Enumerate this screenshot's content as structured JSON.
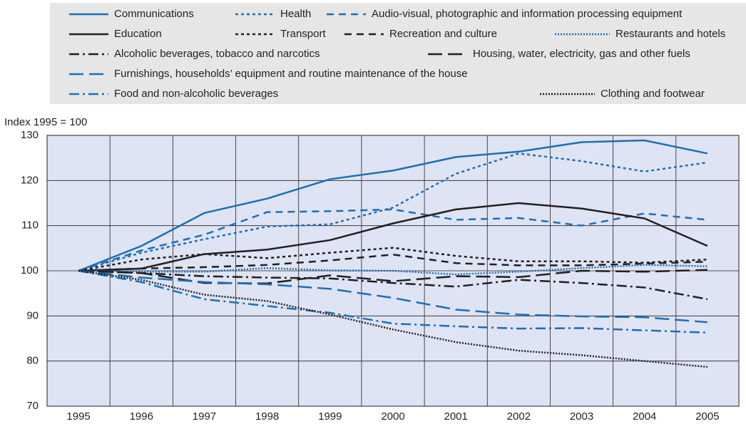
{
  "chart_data": {
    "type": "line",
    "y_label": "Index 1995 = 100",
    "x": [
      1995,
      1996,
      1997,
      1998,
      1999,
      2000,
      2001,
      2002,
      2003,
      2004,
      2005
    ],
    "ylim": [
      70,
      130
    ],
    "yticks": [
      70,
      80,
      90,
      100,
      110,
      120,
      130
    ],
    "grid": true,
    "series": [
      {
        "name": "Communications",
        "color": "#1a70b8",
        "dash": "solid",
        "values": [
          100,
          105.5,
          112.8,
          116,
          120.3,
          122.2,
          125.2,
          126.4,
          128.5,
          128.9,
          126
        ]
      },
      {
        "name": "Health",
        "color": "#1a70b8",
        "dash": "dotted",
        "values": [
          100,
          104,
          107,
          109.8,
          110.3,
          114,
          121.5,
          126,
          124.3,
          122,
          124
        ]
      },
      {
        "name": "Audio-visual, photographic and information processing equipment",
        "color": "#1a70b8",
        "dash": "dashed",
        "values": [
          100,
          104.5,
          108,
          113,
          113.2,
          113.6,
          111.3,
          111.7,
          110,
          112.7,
          111.3
        ]
      },
      {
        "name": "Education",
        "color": "#231f20",
        "dash": "solid",
        "values": [
          100,
          100.5,
          103.7,
          104.7,
          106.8,
          110.5,
          113.6,
          115,
          113.8,
          111.6,
          105.5
        ]
      },
      {
        "name": "Transport",
        "color": "#231f20",
        "dash": "dotted",
        "values": [
          100,
          102.5,
          103.7,
          102.8,
          104,
          105.1,
          103.3,
          102.1,
          102.1,
          101.8,
          102.5
        ]
      },
      {
        "name": "Recreation and culture",
        "color": "#231f20",
        "dash": "dashed",
        "values": [
          100,
          100.5,
          100.8,
          101.3,
          102.3,
          103.6,
          101.7,
          101.2,
          101.2,
          101.6,
          102
        ]
      },
      {
        "name": "Restaurants and hotels",
        "color": "#1a70b8",
        "dash": "densedot",
        "values": [
          100,
          99.8,
          99.8,
          100.6,
          100.1,
          100,
          99.2,
          99.8,
          100.6,
          101.3,
          101
        ]
      },
      {
        "name": "Alcoholic beverages, tobacco and narcotics",
        "color": "#231f20",
        "dash": "dashdot",
        "values": [
          100,
          99.5,
          98.8,
          98.5,
          98.3,
          97.3,
          96.5,
          98,
          97.3,
          96.3,
          93.7
        ]
      },
      {
        "name": "Housing, water, electricity, gas and other fuels",
        "color": "#231f20",
        "dash": "longdash",
        "values": [
          100,
          99.5,
          97.3,
          97.2,
          99,
          97.7,
          98.8,
          98.6,
          100,
          99.8,
          100.2
        ]
      },
      {
        "name": "Furnishings, households’ equipment and routine maintenance of the house",
        "color": "#1a70b8",
        "dash": "longdash",
        "values": [
          100,
          98.5,
          97.5,
          97,
          96,
          94,
          91.4,
          90.3,
          89.9,
          89.7,
          88.6
        ]
      },
      {
        "name": "Food and non-alcoholic beverages",
        "color": "#1a70b8",
        "dash": "dashdot",
        "values": [
          100,
          97.5,
          93.7,
          92.2,
          90.7,
          88.3,
          87.7,
          87.2,
          87.3,
          86.8,
          86.3
        ]
      },
      {
        "name": "Clothing and footwear",
        "color": "#231f20",
        "dash": "densedot",
        "values": [
          100,
          98,
          94.7,
          93.3,
          90.3,
          87,
          84.2,
          82.3,
          81.3,
          80,
          78.7
        ]
      }
    ]
  }
}
